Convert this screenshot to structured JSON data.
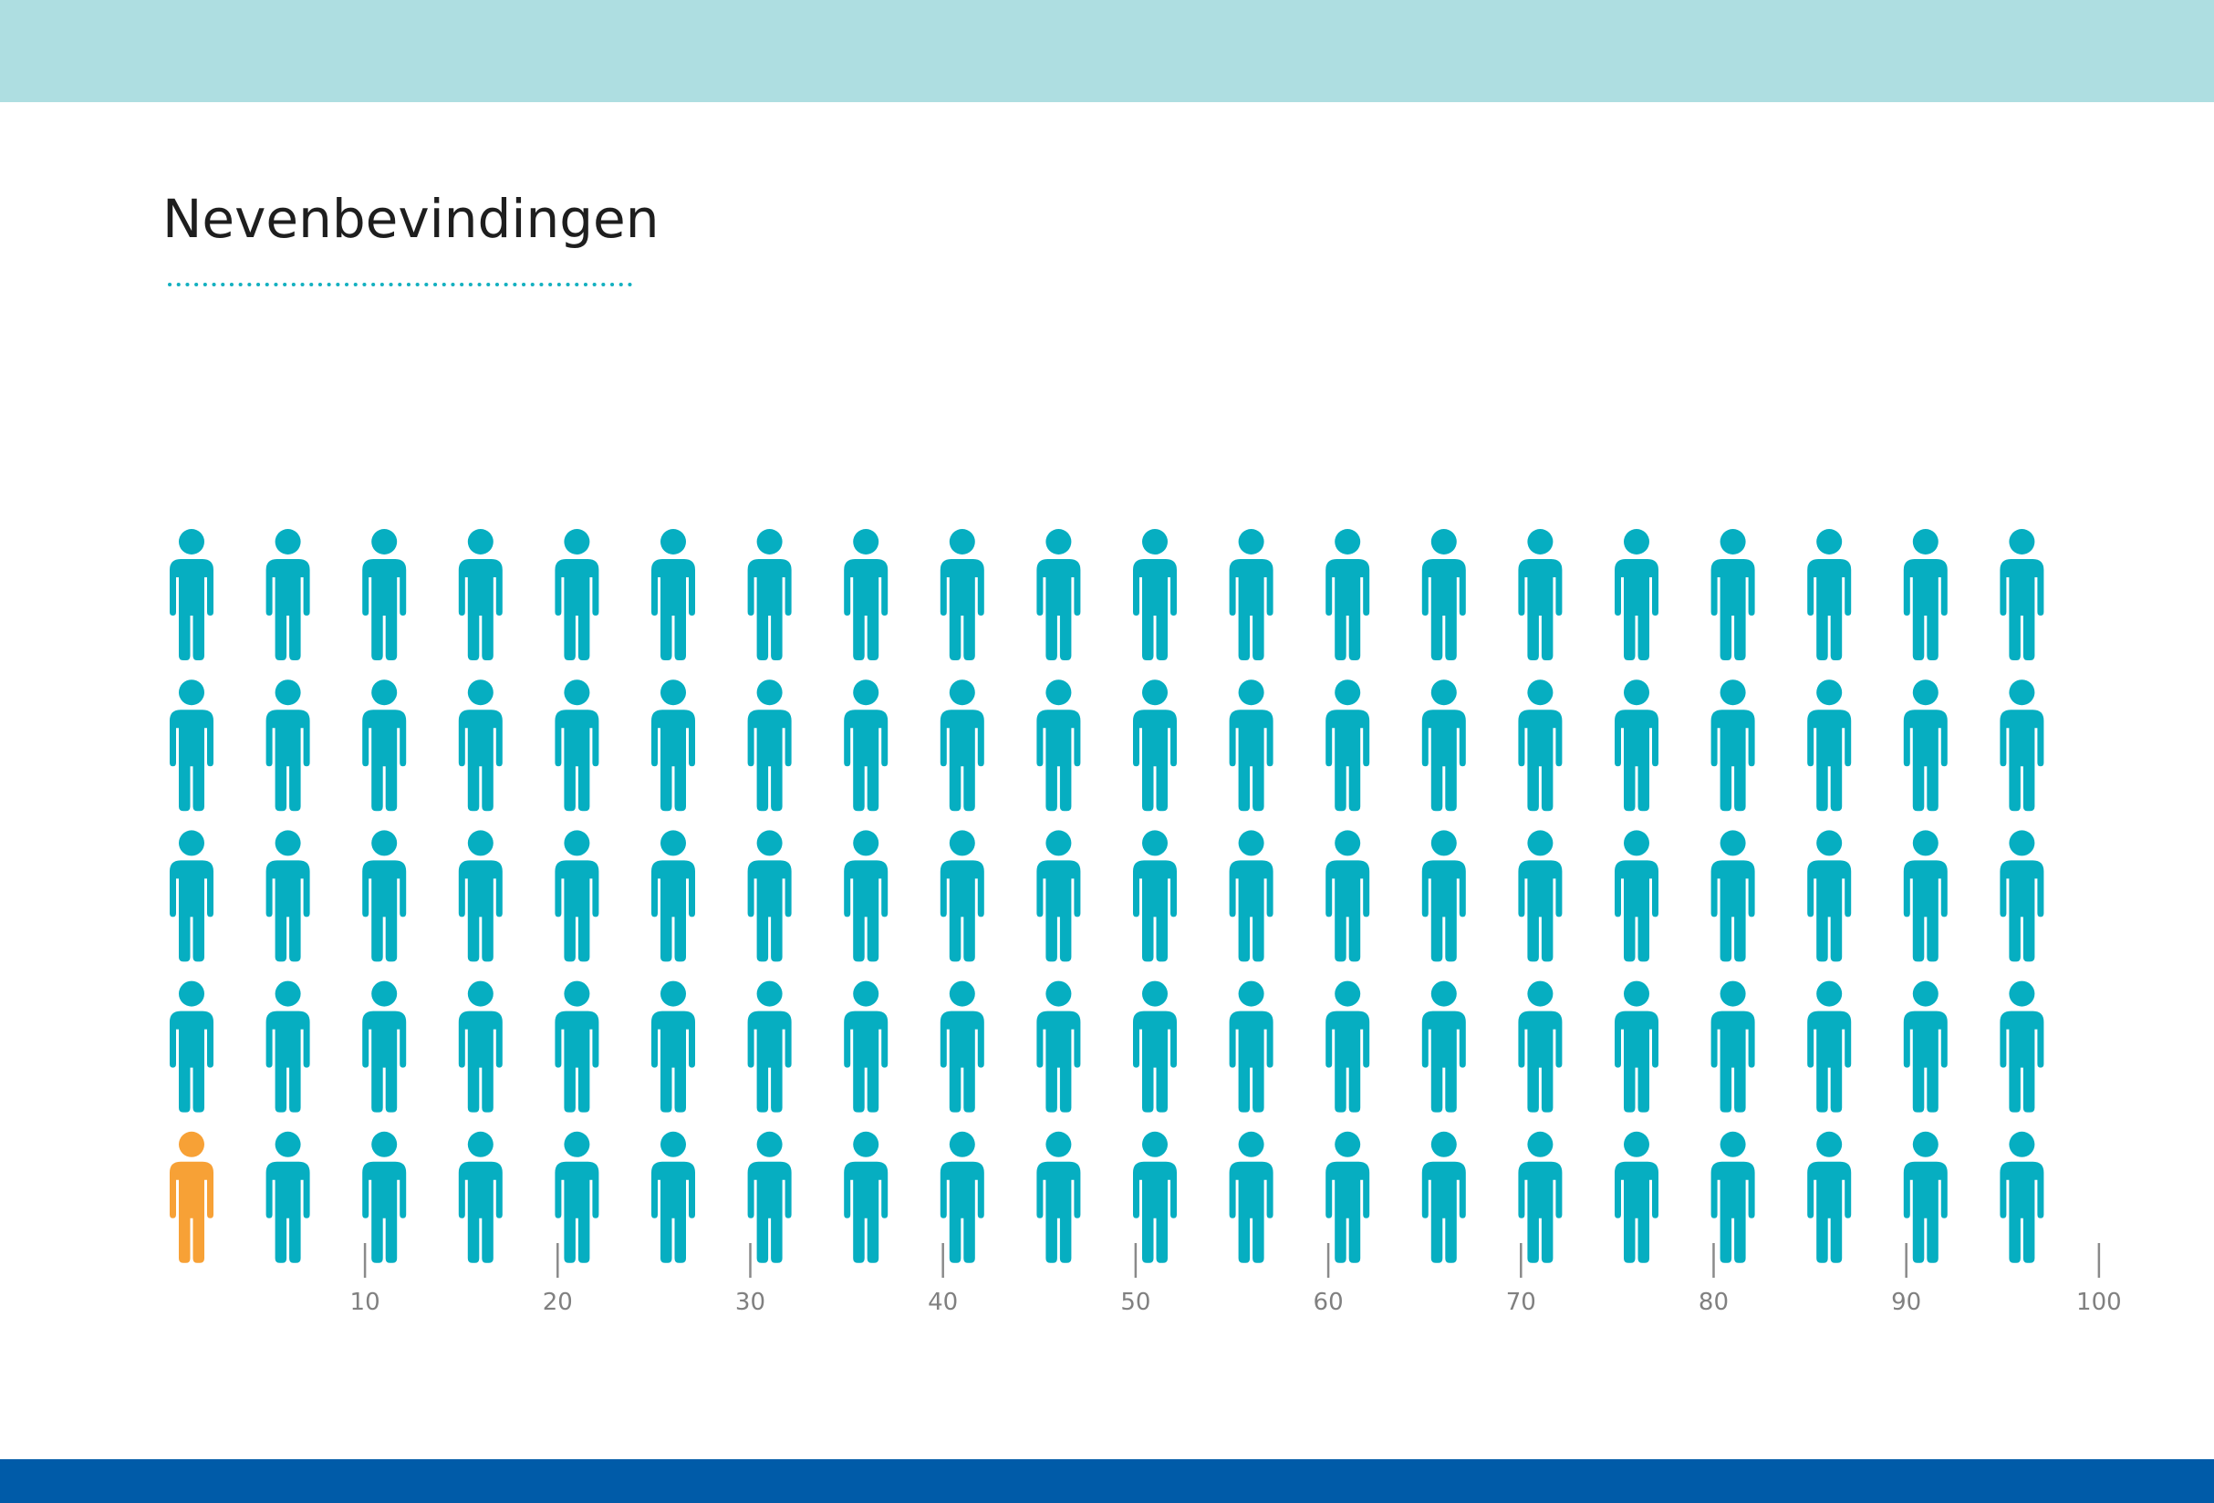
{
  "title": "Nevenbevindingen",
  "colors": {
    "top_band": "#aedee1",
    "bottom_band": "#005ba8",
    "title_rule": "#14b0c0",
    "person_default": "#06aec1",
    "person_highlight": "#f7a136",
    "tick": "#8a8a8a"
  },
  "chart_data": {
    "type": "pictogram",
    "icon": "person-icon",
    "total": 100,
    "highlighted": 1,
    "rows": 5,
    "columns": 20,
    "highlight_position": "bottom-left",
    "xlim": [
      0,
      100
    ],
    "tick_labels": [
      "10",
      "20",
      "30",
      "40",
      "50",
      "60",
      "70",
      "80",
      "90",
      "100"
    ]
  }
}
